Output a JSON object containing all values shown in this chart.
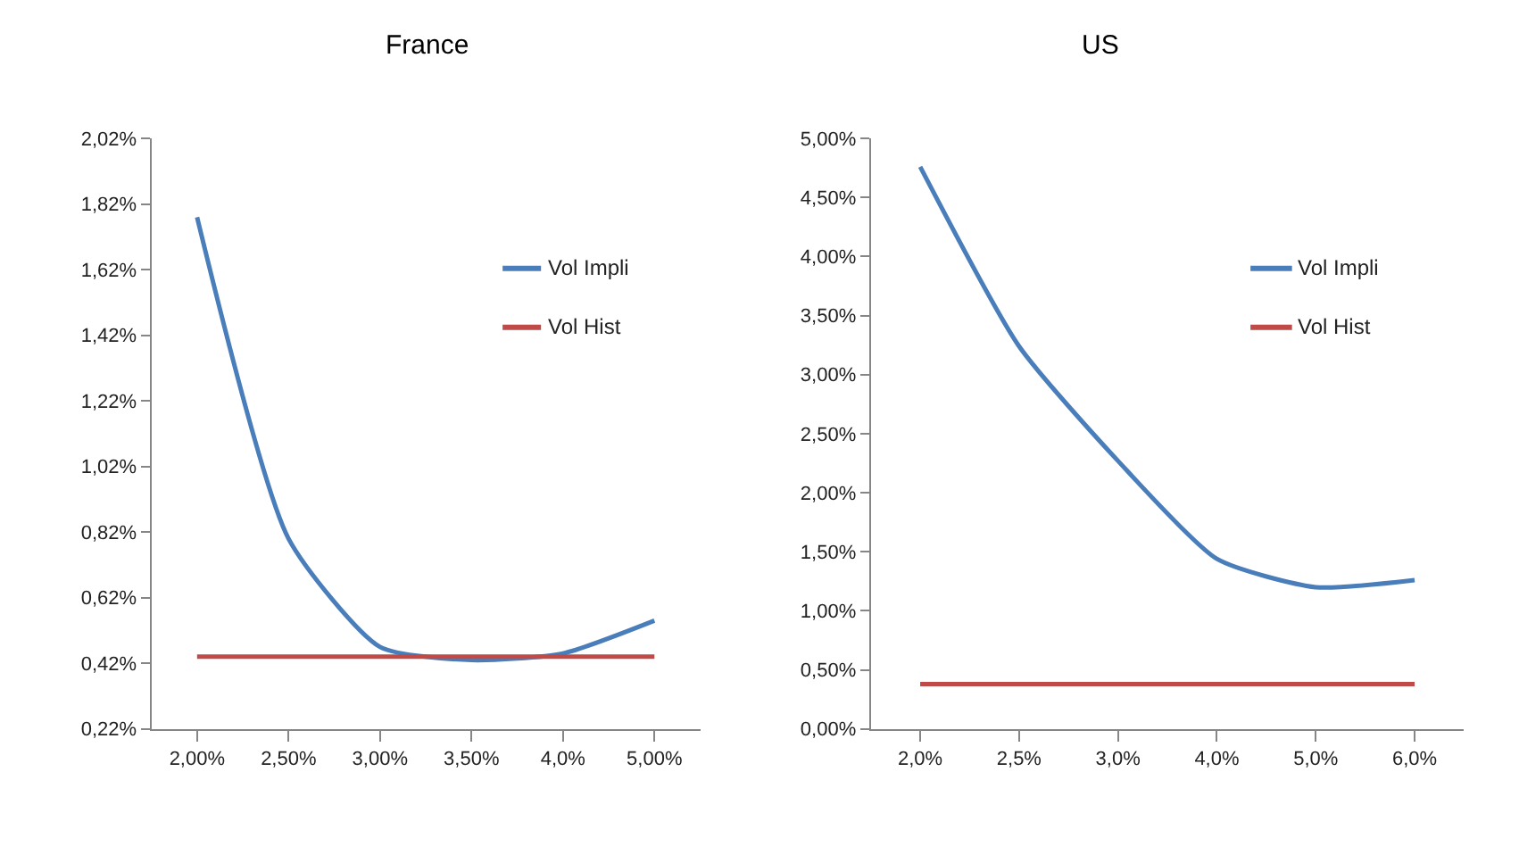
{
  "chart_data": [
    {
      "type": "line",
      "title": "France",
      "categories": [
        "2,00%",
        "2,50%",
        "3,00%",
        "3,50%",
        "4,0%",
        "5,00%"
      ],
      "series": [
        {
          "name": "Vol Impli",
          "color": "#4a7ebb",
          "values": [
            1.78,
            0.8,
            0.47,
            0.43,
            0.45,
            0.55
          ]
        },
        {
          "name": "Vol Hist",
          "color": "#be4b48",
          "values": [
            0.44,
            0.44,
            0.44,
            0.44,
            0.44,
            0.44
          ]
        }
      ],
      "ylim": [
        0.22,
        2.02
      ],
      "yticks": [
        {
          "value": 0.22,
          "label": "0,22%"
        },
        {
          "value": 0.42,
          "label": "0,42%"
        },
        {
          "value": 0.62,
          "label": "0,62%"
        },
        {
          "value": 0.82,
          "label": "0,82%"
        },
        {
          "value": 1.02,
          "label": "1,02%"
        },
        {
          "value": 1.22,
          "label": "1,22%"
        },
        {
          "value": 1.42,
          "label": "1,42%"
        },
        {
          "value": 1.62,
          "label": "1,62%"
        },
        {
          "value": 1.82,
          "label": "1,82%"
        },
        {
          "value": 2.02,
          "label": "2,02%"
        }
      ],
      "legend": "top right"
    },
    {
      "type": "line",
      "title": "US",
      "categories": [
        "2,0%",
        "2,5%",
        "3,0%",
        "4,0%",
        "5,0%",
        "6,0%"
      ],
      "series": [
        {
          "name": "Vol Impli",
          "color": "#4a7ebb",
          "values": [
            4.76,
            3.24,
            2.27,
            1.44,
            1.2,
            1.26
          ]
        },
        {
          "name": "Vol Hist",
          "color": "#be4b48",
          "values": [
            0.38,
            0.38,
            0.38,
            0.38,
            0.38,
            0.38
          ]
        }
      ],
      "ylim": [
        0,
        5
      ],
      "yticks": [
        {
          "value": 0,
          "label": "0,00%"
        },
        {
          "value": 0.5,
          "label": "0,50%"
        },
        {
          "value": 1,
          "label": "1,00%"
        },
        {
          "value": 1.5,
          "label": "1,50%"
        },
        {
          "value": 2,
          "label": "2,00%"
        },
        {
          "value": 2.5,
          "label": "2,50%"
        },
        {
          "value": 3,
          "label": "3,00%"
        },
        {
          "value": 3.5,
          "label": "3,50%"
        },
        {
          "value": 4,
          "label": "4,00%"
        },
        {
          "value": 4.5,
          "label": "4,50%"
        },
        {
          "value": 5,
          "label": "5,00%"
        }
      ],
      "legend": "top right"
    }
  ]
}
